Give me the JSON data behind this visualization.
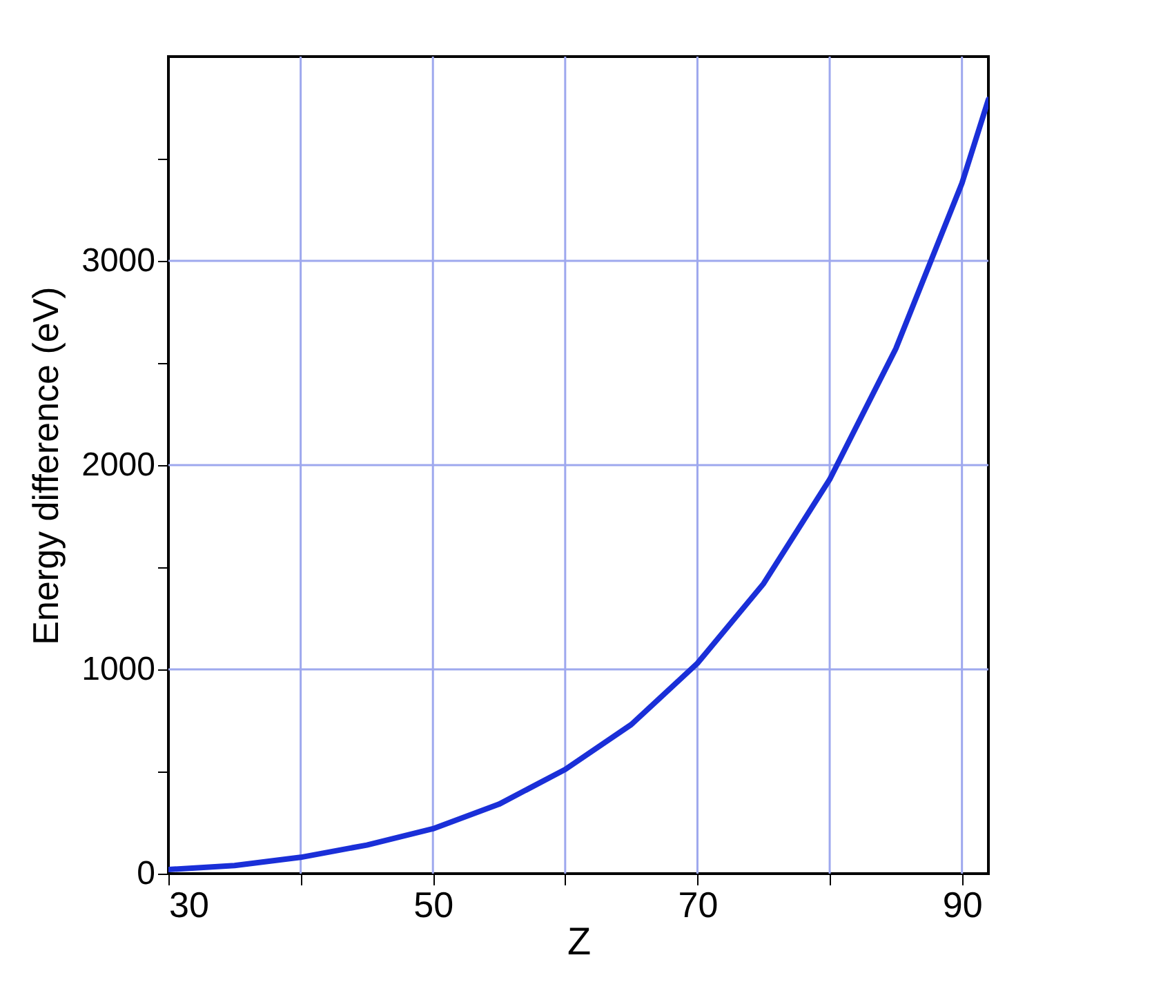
{
  "chart_data": {
    "type": "line",
    "xlabel": "Z",
    "ylabel": "Energy difference (eV)",
    "x": [
      30,
      35,
      40,
      45,
      50,
      55,
      60,
      65,
      70,
      75,
      80,
      85,
      90,
      92
    ],
    "series": [
      {
        "color": "#1a2fd8",
        "values": [
          20,
          40,
          80,
          140,
          220,
          340,
          510,
          730,
          1030,
          1420,
          1930,
          2570,
          3380,
          3790
        ]
      }
    ],
    "xlim": [
      30,
      92
    ],
    "ylim": [
      0,
      4000
    ],
    "xticks": [
      30,
      {
        "value": 40,
        "label": null
      },
      50,
      {
        "value": 60,
        "label": null
      },
      70,
      {
        "value": 80,
        "label": null
      },
      90
    ],
    "yticks": [
      0,
      {
        "value": 500,
        "label": null
      },
      1000,
      {
        "value": 1500,
        "label": null
      },
      2000,
      {
        "value": 2500,
        "label": null
      },
      3000,
      {
        "value": 3500,
        "label": null
      }
    ],
    "grid": true,
    "marker": "none",
    "line_style": "solid"
  }
}
